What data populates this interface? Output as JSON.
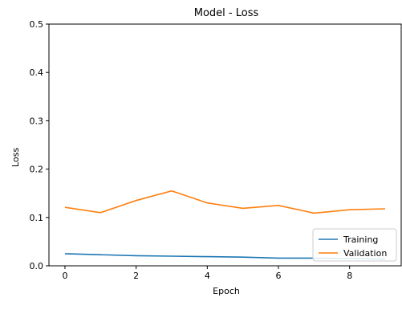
{
  "chart_data": {
    "type": "line",
    "title": "Model - Loss",
    "xlabel": "Epoch",
    "ylabel": "Loss",
    "x": [
      0,
      1,
      2,
      3,
      4,
      5,
      6,
      7,
      8,
      9
    ],
    "xlim": [
      -0.45,
      9.45
    ],
    "ylim": [
      0.0,
      0.5
    ],
    "xticks": [
      0,
      2,
      4,
      6,
      8
    ],
    "yticks": [
      0.0,
      0.1,
      0.2,
      0.3,
      0.4,
      0.5
    ],
    "xtick_labels": [
      "0",
      "2",
      "4",
      "6",
      "8"
    ],
    "ytick_labels": [
      "0.0",
      "0.1",
      "0.2",
      "0.3",
      "0.4",
      "0.5"
    ],
    "grid": false,
    "legend_position": "lower-right",
    "series": [
      {
        "name": "Training",
        "color": "#1f77b4",
        "values": [
          0.025,
          0.023,
          0.021,
          0.02,
          0.019,
          0.018,
          0.016,
          0.016,
          0.015,
          0.014
        ]
      },
      {
        "name": "Validation",
        "color": "#ff7f0e",
        "values": [
          0.121,
          0.11,
          0.135,
          0.155,
          0.13,
          0.119,
          0.125,
          0.109,
          0.116,
          0.118
        ]
      }
    ]
  }
}
